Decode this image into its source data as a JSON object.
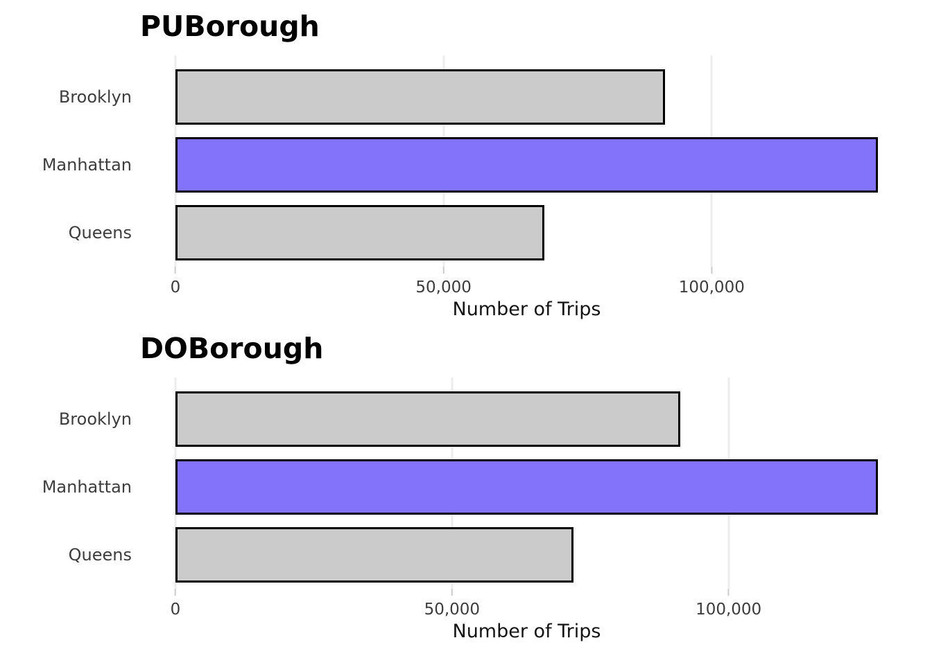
{
  "colors": {
    "bar_default": "#cbcbcb",
    "bar_highlight": "#8273fa",
    "bar_edge": "#000000",
    "gridline": "#ececec",
    "tick_mark": "#cccccc",
    "tick_label": "#3d3d3d",
    "category_label": "#3d3d3d",
    "axis_label": "#141414",
    "title": "#000000",
    "background": "#ffffff"
  },
  "chart_data": [
    {
      "type": "bar",
      "orientation": "horizontal",
      "title": "PUBorough",
      "xlabel": "Number of Trips",
      "categories": [
        "Brooklyn",
        "Manhattan",
        "Queens"
      ],
      "values": [
        91300,
        131000,
        68800
      ],
      "highlight_category": "Manhattan",
      "xlim": [
        0,
        131000
      ],
      "xticks": [
        0,
        50000,
        100000
      ],
      "xtick_labels": [
        "0",
        "50,000",
        "100,000"
      ],
      "grid": "vertical-ticks-only",
      "legend": "none"
    },
    {
      "type": "bar",
      "orientation": "horizontal",
      "title": "DOBorough",
      "xlabel": "Number of Trips",
      "categories": [
        "Brooklyn",
        "Manhattan",
        "Queens"
      ],
      "values": [
        91300,
        127000,
        72000
      ],
      "highlight_category": "Manhattan",
      "xlim": [
        0,
        127000
      ],
      "xticks": [
        0,
        50000,
        100000
      ],
      "xtick_labels": [
        "0",
        "50,000",
        "100,000"
      ],
      "grid": "vertical-ticks-only",
      "legend": "none"
    }
  ]
}
